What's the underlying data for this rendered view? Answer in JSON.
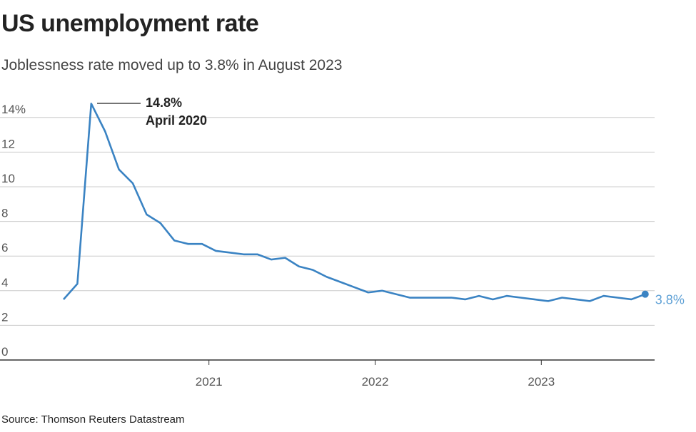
{
  "title": "US unemployment rate",
  "subtitle": "Joblessness rate moved up to 3.8% in August 2023",
  "source": "Source: Thomson Reuters Datastream",
  "colors": {
    "line": "#3a83c3",
    "end_label": "#5fa1d6",
    "grid": "#cccccc",
    "axis": "#333333"
  },
  "chart_data": {
    "type": "line",
    "title": "US unemployment rate",
    "xlabel": "",
    "ylabel": "",
    "ylim": [
      0,
      15
    ],
    "y_ticks": [
      0,
      2,
      4,
      6,
      8,
      10,
      12,
      14
    ],
    "y_tick_labels": [
      "0",
      "2",
      "4",
      "6",
      "8",
      "10",
      "12",
      "14%"
    ],
    "x_ticks": [
      {
        "label": "2021",
        "month_index": 10.5
      },
      {
        "label": "2022",
        "month_index": 22.5
      },
      {
        "label": "2023",
        "month_index": 34.5
      }
    ],
    "start_month": "Feb 2020",
    "grid": true,
    "series": [
      {
        "name": "Unemployment rate (%)",
        "values": [
          3.5,
          4.4,
          14.8,
          13.2,
          11.0,
          10.2,
          8.4,
          7.9,
          6.9,
          6.7,
          6.7,
          6.3,
          6.2,
          6.1,
          6.1,
          5.8,
          5.9,
          5.4,
          5.2,
          4.8,
          4.5,
          4.2,
          3.9,
          4.0,
          3.8,
          3.6,
          3.6,
          3.6,
          3.6,
          3.5,
          3.7,
          3.5,
          3.7,
          3.6,
          3.5,
          3.4,
          3.6,
          3.5,
          3.4,
          3.7,
          3.6,
          3.5,
          3.8
        ]
      }
    ],
    "annotations": {
      "peak_value": "14.8%",
      "peak_date": "April 2020",
      "end_label": "3.8%"
    }
  }
}
